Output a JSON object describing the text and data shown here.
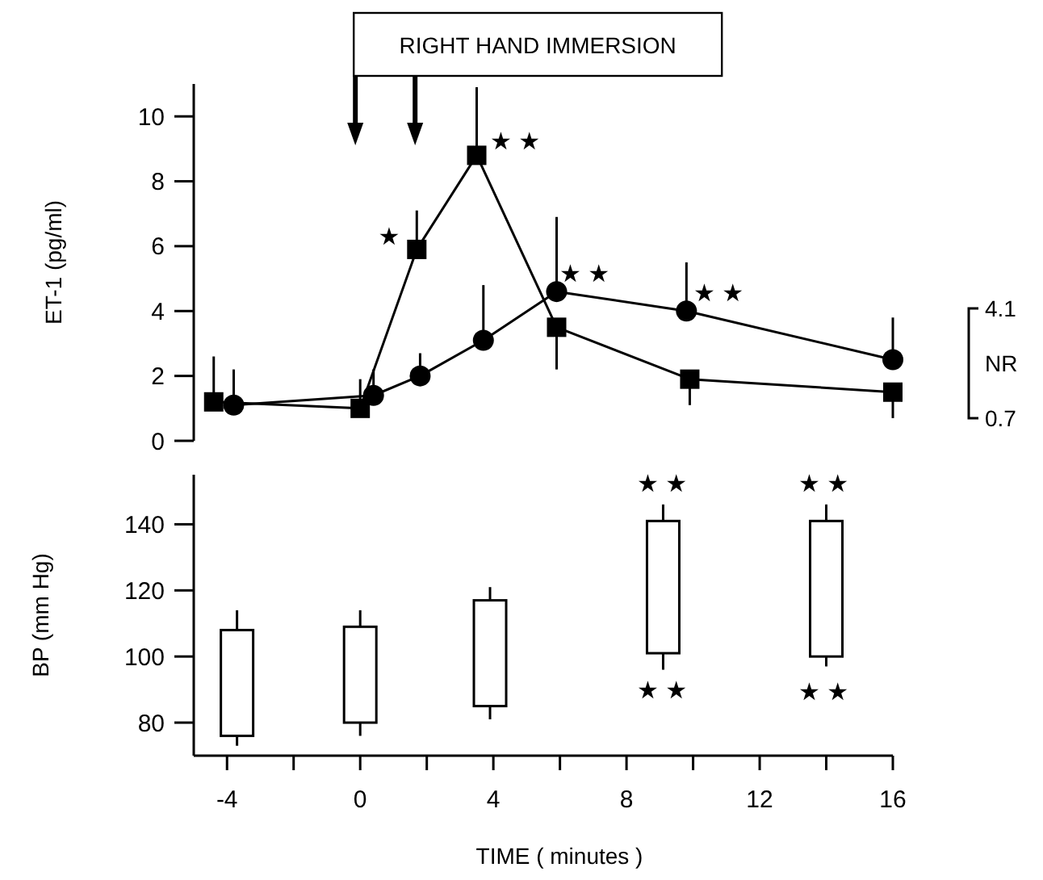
{
  "chart_data": [
    {
      "type": "line",
      "title": "RIGHT HAND IMMERSION",
      "ylabel": "ET-1 (pg/ml)",
      "xlim": [
        -5,
        16
      ],
      "ylim": [
        0,
        11
      ],
      "yticks": [
        0,
        2,
        4,
        6,
        8,
        10
      ],
      "tick_labels": "y",
      "grid": false,
      "line_style": "solid",
      "series": [
        {
          "color": "#000000",
          "marker": "square",
          "x": [
            -4.4,
            0,
            1.7,
            3.5,
            5.9,
            9.9,
            16
          ],
          "values": [
            1.2,
            1.0,
            5.9,
            8.8,
            3.5,
            1.9,
            1.5
          ],
          "errors": [
            [
              1.2,
              2.6
            ],
            [
              1.0,
              1.9
            ],
            [
              5.9,
              7.1
            ],
            [
              8.8,
              10.9
            ],
            [
              2.2,
              3.5
            ],
            [
              1.1,
              1.9
            ],
            [
              0.7,
              1.5
            ]
          ]
        },
        {
          "color": "#000000",
          "marker": "circle",
          "x": [
            -3.8,
            0.4,
            1.8,
            3.7,
            5.9,
            9.8,
            16
          ],
          "values": [
            1.1,
            1.4,
            2.0,
            3.1,
            4.6,
            4.0,
            2.5
          ],
          "errors": [
            [
              1.1,
              2.2
            ],
            [
              1.4,
              2.2
            ],
            [
              2.0,
              2.7
            ],
            [
              3.1,
              4.8
            ],
            [
              4.6,
              6.9
            ],
            [
              4.0,
              5.5
            ],
            [
              2.5,
              3.8
            ]
          ]
        }
      ],
      "annotations": [
        "★",
        "★ ★",
        "★ ★",
        "★ ★",
        "4.1",
        "NR",
        "0.7"
      ]
    },
    {
      "type": "bar",
      "xlabel": "TIME ( minutes )",
      "ylabel": "BP (mm Hg)",
      "xlim": [
        -5,
        16
      ],
      "ylim": [
        70,
        155
      ],
      "yticks": [
        80,
        100,
        120,
        140
      ],
      "xticks": [
        -4,
        {
          "value": -2,
          "label": null
        },
        0,
        {
          "value": 2,
          "label": null
        },
        4,
        {
          "value": 6,
          "label": null
        },
        8,
        {
          "value": 10,
          "label": null
        },
        12,
        {
          "value": 14,
          "label": null
        },
        16
      ],
      "grid": false,
      "color": "#ffffff",
      "x": [
        -3.7,
        0,
        3.9,
        9.1,
        14.0
      ],
      "base": [
        76,
        80,
        85,
        101,
        100
      ],
      "values": [
        32,
        29,
        32,
        40,
        41
      ],
      "errors": [
        [
          73,
          114
        ],
        [
          76,
          114
        ],
        [
          81,
          121
        ],
        [
          96,
          146
        ],
        [
          97,
          146
        ]
      ],
      "annotations": [
        "★ ★",
        "★ ★",
        "★ ★",
        "★ ★"
      ]
    }
  ]
}
